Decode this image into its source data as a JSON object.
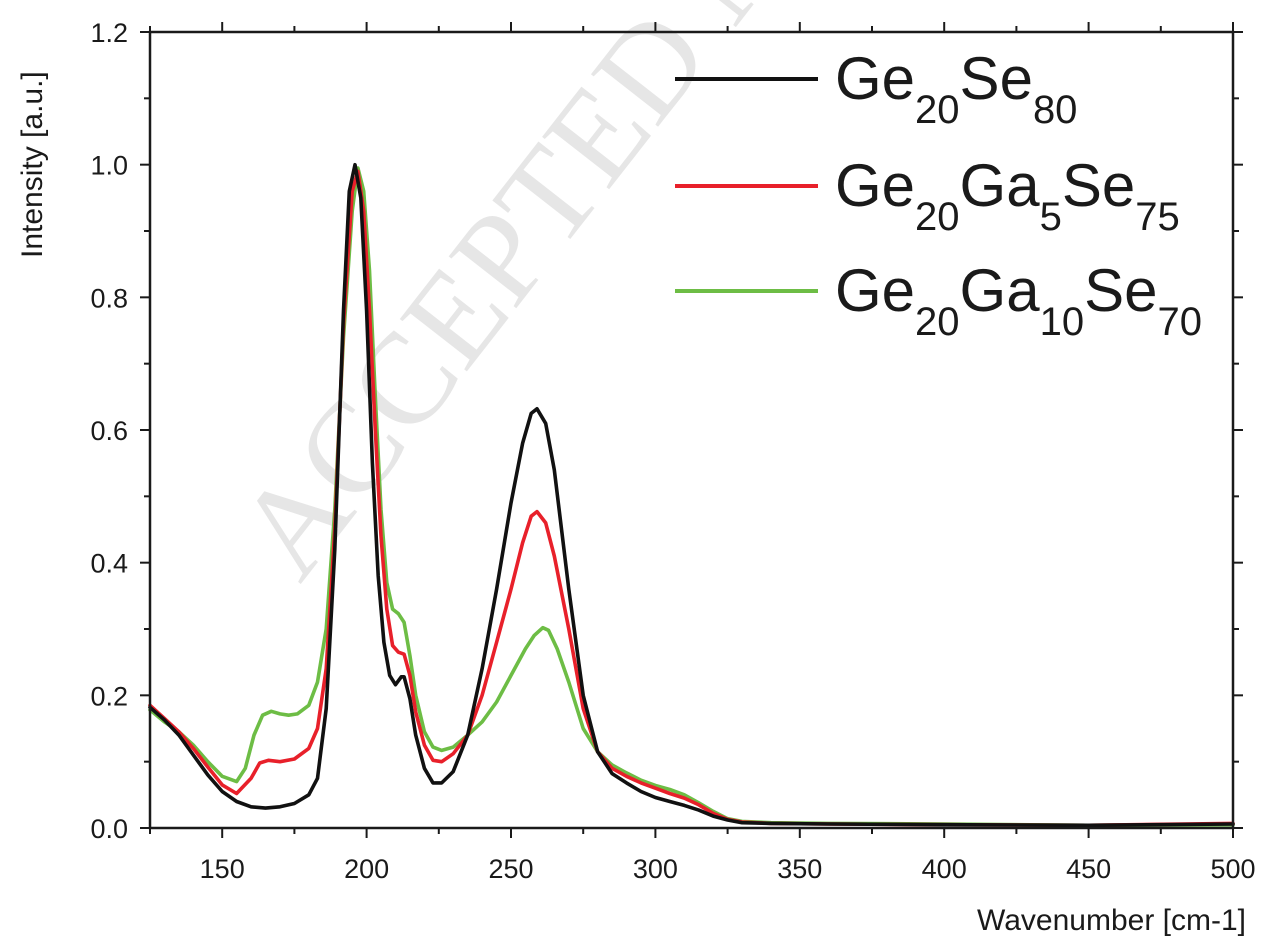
{
  "chart_data": {
    "type": "line",
    "watermark": "ACCEPTED MANUSCRIPT",
    "xlabel": "Wavenumber [cm-1]",
    "ylabel": "Intensity [a.u.]",
    "xlim": [
      125,
      500
    ],
    "ylim": [
      0.0,
      1.2
    ],
    "x_ticks": [
      150,
      200,
      250,
      300,
      350,
      400,
      450,
      500
    ],
    "x_tick_labels": [
      "150",
      "200",
      "250",
      "300",
      "350",
      "400",
      "450",
      "500"
    ],
    "y_ticks": [
      0.0,
      0.2,
      0.4,
      0.6,
      0.8,
      1.0,
      1.2
    ],
    "y_tick_labels": [
      "0.0",
      "0.2",
      "0.4",
      "0.6",
      "0.8",
      "1.0",
      "1.2"
    ],
    "legend_position": "top-right",
    "grid": false,
    "series": [
      {
        "name": "Ge20Se80",
        "legend_parts": [
          [
            "Ge",
            ""
          ],
          [
            "20",
            "sub"
          ],
          [
            "Se",
            ""
          ],
          [
            "80",
            "sub"
          ]
        ],
        "color": "#111111",
        "points": [
          [
            125,
            0.182
          ],
          [
            130,
            0.163
          ],
          [
            135,
            0.14
          ],
          [
            140,
            0.11
          ],
          [
            145,
            0.08
          ],
          [
            150,
            0.055
          ],
          [
            155,
            0.04
          ],
          [
            160,
            0.032
          ],
          [
            165,
            0.03
          ],
          [
            170,
            0.032
          ],
          [
            175,
            0.037
          ],
          [
            180,
            0.05
          ],
          [
            183,
            0.075
          ],
          [
            186,
            0.18
          ],
          [
            189,
            0.42
          ],
          [
            192,
            0.78
          ],
          [
            194,
            0.96
          ],
          [
            196,
            1.0
          ],
          [
            198,
            0.95
          ],
          [
            200,
            0.78
          ],
          [
            202,
            0.55
          ],
          [
            204,
            0.38
          ],
          [
            206,
            0.28
          ],
          [
            208,
            0.23
          ],
          [
            210,
            0.216
          ],
          [
            212,
            0.228
          ],
          [
            213,
            0.228
          ],
          [
            215,
            0.195
          ],
          [
            217,
            0.14
          ],
          [
            220,
            0.09
          ],
          [
            223,
            0.068
          ],
          [
            226,
            0.068
          ],
          [
            230,
            0.085
          ],
          [
            235,
            0.14
          ],
          [
            240,
            0.24
          ],
          [
            245,
            0.36
          ],
          [
            250,
            0.49
          ],
          [
            254,
            0.58
          ],
          [
            257,
            0.625
          ],
          [
            259,
            0.632
          ],
          [
            262,
            0.61
          ],
          [
            265,
            0.54
          ],
          [
            270,
            0.36
          ],
          [
            275,
            0.2
          ],
          [
            280,
            0.115
          ],
          [
            285,
            0.082
          ],
          [
            290,
            0.068
          ],
          [
            295,
            0.055
          ],
          [
            300,
            0.046
          ],
          [
            305,
            0.04
          ],
          [
            310,
            0.034
          ],
          [
            315,
            0.027
          ],
          [
            320,
            0.018
          ],
          [
            325,
            0.012
          ],
          [
            330,
            0.008
          ],
          [
            340,
            0.007
          ],
          [
            360,
            0.006
          ],
          [
            400,
            0.005
          ],
          [
            450,
            0.004
          ],
          [
            500,
            0.006
          ]
        ]
      },
      {
        "name": "Ge20Ga5Se75",
        "legend_parts": [
          [
            "Ge",
            ""
          ],
          [
            "20",
            "sub"
          ],
          [
            "Ga",
            ""
          ],
          [
            "5",
            "sub"
          ],
          [
            "Se",
            ""
          ],
          [
            "75",
            "sub"
          ]
        ],
        "color": "#e8202a",
        "points": [
          [
            125,
            0.185
          ],
          [
            130,
            0.165
          ],
          [
            135,
            0.145
          ],
          [
            140,
            0.12
          ],
          [
            145,
            0.092
          ],
          [
            150,
            0.065
          ],
          [
            155,
            0.052
          ],
          [
            160,
            0.075
          ],
          [
            163,
            0.098
          ],
          [
            166,
            0.102
          ],
          [
            170,
            0.1
          ],
          [
            175,
            0.104
          ],
          [
            180,
            0.12
          ],
          [
            183,
            0.15
          ],
          [
            186,
            0.24
          ],
          [
            189,
            0.45
          ],
          [
            192,
            0.76
          ],
          [
            195,
            0.96
          ],
          [
            197,
            0.99
          ],
          [
            199,
            0.93
          ],
          [
            201,
            0.78
          ],
          [
            203,
            0.6
          ],
          [
            205,
            0.44
          ],
          [
            207,
            0.33
          ],
          [
            209,
            0.275
          ],
          [
            211,
            0.265
          ],
          [
            213,
            0.262
          ],
          [
            215,
            0.23
          ],
          [
            217,
            0.175
          ],
          [
            220,
            0.125
          ],
          [
            223,
            0.102
          ],
          [
            226,
            0.1
          ],
          [
            230,
            0.112
          ],
          [
            235,
            0.14
          ],
          [
            240,
            0.2
          ],
          [
            245,
            0.28
          ],
          [
            250,
            0.36
          ],
          [
            254,
            0.43
          ],
          [
            257,
            0.47
          ],
          [
            259,
            0.477
          ],
          [
            262,
            0.46
          ],
          [
            265,
            0.41
          ],
          [
            270,
            0.3
          ],
          [
            275,
            0.18
          ],
          [
            280,
            0.115
          ],
          [
            285,
            0.09
          ],
          [
            290,
            0.078
          ],
          [
            295,
            0.068
          ],
          [
            300,
            0.06
          ],
          [
            305,
            0.052
          ],
          [
            310,
            0.045
          ],
          [
            315,
            0.035
          ],
          [
            320,
            0.022
          ],
          [
            325,
            0.013
          ],
          [
            330,
            0.009
          ],
          [
            340,
            0.007
          ],
          [
            360,
            0.006
          ],
          [
            400,
            0.005
          ],
          [
            450,
            0.004
          ],
          [
            500,
            0.007
          ]
        ]
      },
      {
        "name": "Ge20Ga10Se70",
        "legend_parts": [
          [
            "Ge",
            ""
          ],
          [
            "20",
            "sub"
          ],
          [
            "Ga",
            ""
          ],
          [
            "10",
            "sub"
          ],
          [
            "Se",
            ""
          ],
          [
            "70",
            "sub"
          ]
        ],
        "color": "#6dbd45",
        "points": [
          [
            125,
            0.178
          ],
          [
            130,
            0.16
          ],
          [
            135,
            0.145
          ],
          [
            140,
            0.125
          ],
          [
            145,
            0.1
          ],
          [
            150,
            0.078
          ],
          [
            155,
            0.07
          ],
          [
            158,
            0.09
          ],
          [
            161,
            0.14
          ],
          [
            164,
            0.17
          ],
          [
            167,
            0.176
          ],
          [
            170,
            0.172
          ],
          [
            173,
            0.17
          ],
          [
            176,
            0.172
          ],
          [
            180,
            0.185
          ],
          [
            183,
            0.22
          ],
          [
            186,
            0.3
          ],
          [
            189,
            0.48
          ],
          [
            192,
            0.74
          ],
          [
            195,
            0.93
          ],
          [
            197,
            0.995
          ],
          [
            199,
            0.96
          ],
          [
            201,
            0.84
          ],
          [
            203,
            0.65
          ],
          [
            205,
            0.48
          ],
          [
            207,
            0.37
          ],
          [
            209,
            0.33
          ],
          [
            211,
            0.323
          ],
          [
            213,
            0.31
          ],
          [
            215,
            0.26
          ],
          [
            217,
            0.2
          ],
          [
            220,
            0.145
          ],
          [
            223,
            0.122
          ],
          [
            226,
            0.117
          ],
          [
            230,
            0.122
          ],
          [
            235,
            0.14
          ],
          [
            240,
            0.16
          ],
          [
            245,
            0.19
          ],
          [
            250,
            0.23
          ],
          [
            255,
            0.27
          ],
          [
            258,
            0.29
          ],
          [
            261,
            0.302
          ],
          [
            263,
            0.298
          ],
          [
            266,
            0.27
          ],
          [
            270,
            0.22
          ],
          [
            275,
            0.15
          ],
          [
            280,
            0.115
          ],
          [
            285,
            0.095
          ],
          [
            290,
            0.083
          ],
          [
            295,
            0.072
          ],
          [
            300,
            0.064
          ],
          [
            305,
            0.058
          ],
          [
            310,
            0.05
          ],
          [
            315,
            0.038
          ],
          [
            320,
            0.025
          ],
          [
            325,
            0.014
          ],
          [
            330,
            0.01
          ],
          [
            340,
            0.008
          ],
          [
            360,
            0.007
          ],
          [
            400,
            0.006
          ],
          [
            450,
            0.004
          ],
          [
            500,
            0.005
          ]
        ]
      }
    ]
  }
}
